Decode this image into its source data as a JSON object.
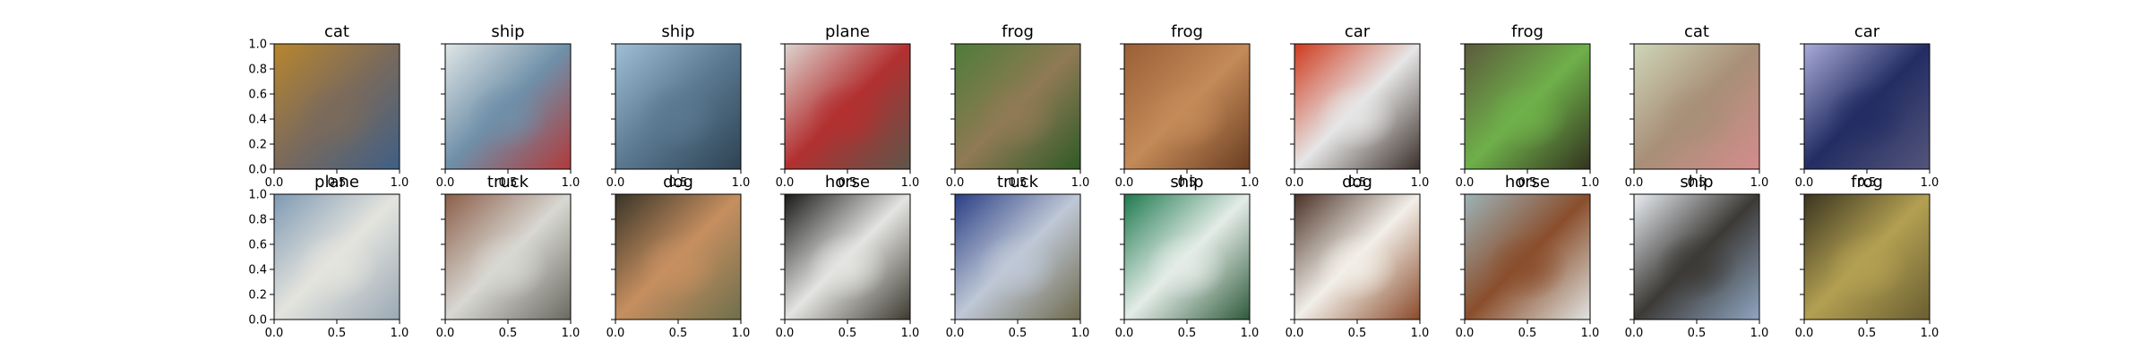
{
  "chart_data": {
    "type": "image-grid",
    "grid": {
      "rows": 2,
      "cols": 10
    },
    "xlim": [
      0,
      1
    ],
    "ylim": [
      0,
      1
    ],
    "x_ticks": [
      "0.0",
      "0.5",
      "1.0"
    ],
    "y_ticks": [
      "0.0",
      "0.2",
      "0.4",
      "0.6",
      "0.8",
      "1.0"
    ],
    "panels": [
      {
        "title": "cat",
        "colors": [
          "#b8862e",
          "#7a6a5c",
          "#3f5f86"
        ]
      },
      {
        "title": "ship",
        "colors": [
          "#dfe6e6",
          "#6f8fa8",
          "#b23a3a"
        ]
      },
      {
        "title": "ship",
        "colors": [
          "#9fbfd6",
          "#5a7890",
          "#2e4354"
        ]
      },
      {
        "title": "plane",
        "colors": [
          "#ddd4cf",
          "#b23030",
          "#5e564a"
        ]
      },
      {
        "title": "frog",
        "colors": [
          "#4e7c38",
          "#8f7a55",
          "#2f5a26"
        ]
      },
      {
        "title": "frog",
        "colors": [
          "#9a5f36",
          "#c48a58",
          "#6a3e22"
        ]
      },
      {
        "title": "car",
        "colors": [
          "#cf3a1e",
          "#e6e6e6",
          "#3a2f2a"
        ]
      },
      {
        "title": "frog",
        "colors": [
          "#5c5a3c",
          "#6fb04a",
          "#33331f"
        ]
      },
      {
        "title": "cat",
        "colors": [
          "#cfd6b8",
          "#a88f78",
          "#d48c8c"
        ]
      },
      {
        "title": "car",
        "colors": [
          "#a9abd8",
          "#232d63",
          "#54557a"
        ]
      },
      {
        "title": "plane",
        "colors": [
          "#7f9ab3",
          "#e4e4de",
          "#9aa8b4"
        ]
      },
      {
        "title": "truck",
        "colors": [
          "#8c5e4a",
          "#d8d8d2",
          "#6a6a62"
        ]
      },
      {
        "title": "dog",
        "colors": [
          "#3a3528",
          "#c68f60",
          "#6e6f4c"
        ]
      },
      {
        "title": "horse",
        "colors": [
          "#1a1a18",
          "#e4e4e2",
          "#3c3a30"
        ]
      },
      {
        "title": "truck",
        "colors": [
          "#2a3f86",
          "#bfc8d6",
          "#6f6a4e"
        ]
      },
      {
        "title": "ship",
        "colors": [
          "#1f7a4f",
          "#e4ece8",
          "#2e5a3a"
        ]
      },
      {
        "title": "dog",
        "colors": [
          "#4a3126",
          "#f2efe8",
          "#8a4a2a"
        ]
      },
      {
        "title": "horse",
        "colors": [
          "#9db3b8",
          "#8a4e2c",
          "#e0e4e2"
        ]
      },
      {
        "title": "ship",
        "colors": [
          "#e9edf2",
          "#3c3a36",
          "#8fa5c2"
        ]
      },
      {
        "title": "frog",
        "colors": [
          "#3a3520",
          "#b3a052",
          "#6a5e32"
        ]
      }
    ]
  }
}
